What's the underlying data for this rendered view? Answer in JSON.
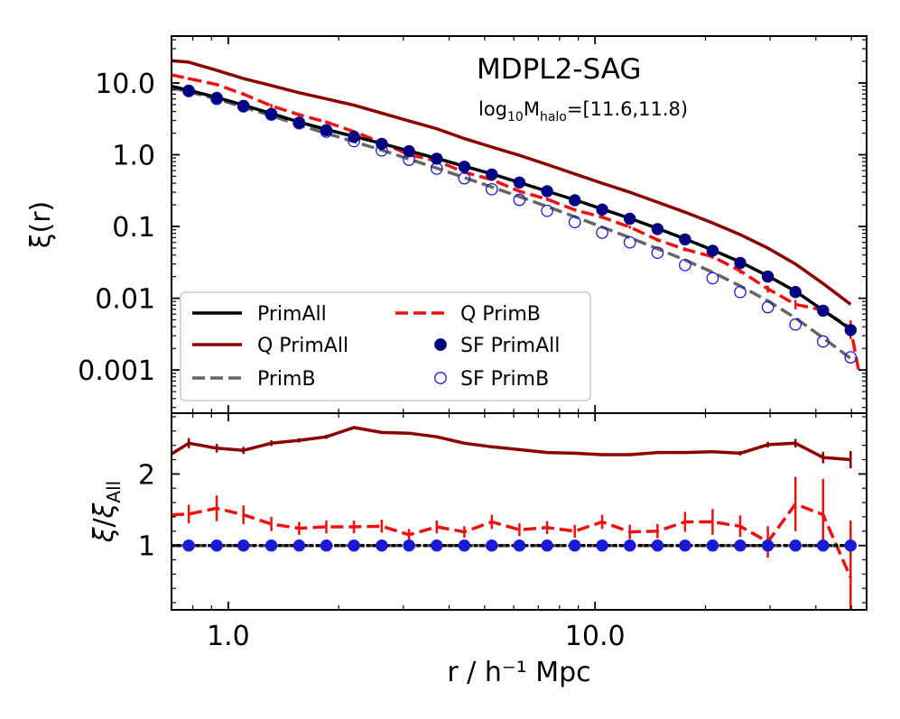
{
  "chart_data": [
    {
      "type": "line",
      "panel": "main",
      "title": "MDPL2-SAG",
      "subtitle": {
        "prefix": "log",
        "sub1": "10",
        "mid": "M",
        "sub2": "halo",
        "suffix": "=[11.6,11.8)"
      },
      "xlabel": "r / h⁻¹ Mpc",
      "ylabel": "ξ(r)",
      "xscale": "log",
      "yscale": "log",
      "xlim": [
        0.7,
        55
      ],
      "ylim": [
        0.00025,
        45
      ],
      "xticks": [
        {
          "v": 1.0,
          "label": "1.0"
        },
        {
          "v": 10.0,
          "label": "10.0"
        }
      ],
      "yticks": [
        {
          "v": 10,
          "label": "10.0"
        },
        {
          "v": 1,
          "label": "1.0"
        },
        {
          "v": 0.1,
          "label": "0.1"
        },
        {
          "v": 0.01,
          "label": "0.01"
        },
        {
          "v": 0.001,
          "label": "0.001"
        }
      ],
      "x": [
        0.7,
        0.78,
        0.93,
        1.1,
        1.31,
        1.56,
        1.85,
        2.2,
        2.62,
        3.11,
        3.7,
        4.4,
        5.23,
        6.22,
        7.4,
        8.8,
        10.46,
        12.44,
        14.8,
        17.59,
        20.92,
        24.88,
        29.59,
        35.19,
        41.85,
        49.76
      ],
      "series": [
        {
          "name": "PrimAll",
          "style": "solid",
          "color": "#000000",
          "values": [
            9.0,
            7.9,
            6.3,
            4.9,
            3.75,
            2.85,
            2.25,
            1.8,
            1.43,
            1.13,
            0.89,
            0.69,
            0.54,
            0.41,
            0.31,
            0.235,
            0.175,
            0.13,
            0.094,
            0.067,
            0.047,
            0.032,
            0.0205,
            0.0125,
            0.0068,
            0.0037
          ]
        },
        {
          "name": "Q PrimAll",
          "style": "solid",
          "color": "#8b0000",
          "values": [
            20.5,
            19.5,
            15.0,
            11.5,
            9.2,
            7.3,
            6.0,
            4.9,
            3.8,
            2.95,
            2.3,
            1.68,
            1.28,
            0.98,
            0.73,
            0.54,
            0.4,
            0.3,
            0.218,
            0.158,
            0.112,
            0.077,
            0.05,
            0.03,
            0.016,
            0.0082
          ]
        },
        {
          "name": "PrimB",
          "style": "dashed",
          "color": "#666666",
          "values": [
            8.6,
            7.5,
            6.0,
            4.6,
            3.5,
            2.6,
            1.98,
            1.52,
            1.16,
            0.87,
            0.65,
            0.48,
            0.355,
            0.26,
            0.19,
            0.137,
            0.098,
            0.07,
            0.049,
            0.034,
            0.023,
            0.0148,
            0.0092,
            0.0053,
            0.0028,
            0.00145
          ]
        },
        {
          "name": "Q PrimB",
          "style": "dashed",
          "color": "#ee1111",
          "values": [
            13.0,
            11.5,
            9.5,
            7.0,
            4.8,
            3.6,
            2.85,
            2.1,
            1.48,
            1.0,
            0.82,
            0.57,
            0.45,
            0.31,
            0.24,
            0.17,
            0.135,
            0.098,
            0.065,
            0.048,
            0.038,
            0.024,
            0.0135,
            0.0082,
            0.0068,
            0.0038,
            0.0009
          ],
          "x": [
            0.7,
            0.78,
            0.93,
            1.1,
            1.31,
            1.56,
            1.85,
            2.2,
            2.62,
            3.11,
            3.7,
            4.4,
            5.23,
            6.22,
            7.4,
            8.8,
            10.46,
            12.44,
            14.8,
            17.59,
            20.92,
            24.88,
            29.59,
            35.19,
            41.85,
            49.76,
            52.5
          ],
          "errors": [
            0,
            0.5,
            0.5,
            0.4,
            0.3,
            0.2,
            0.15,
            0.1,
            0.08,
            0.05,
            0.04,
            0.03,
            0.02,
            0.015,
            0.012,
            0.009,
            0.007,
            0.005,
            0.004,
            0.003,
            0.0025,
            0.002,
            0.0015,
            0.0012,
            0.0012,
            0.0011,
            0
          ]
        },
        {
          "name": "SF PrimAll",
          "style": "filled-circle",
          "color": "#000080",
          "values": [
            null,
            7.8,
            6.2,
            4.8,
            3.7,
            2.8,
            2.2,
            1.78,
            1.42,
            1.12,
            0.88,
            0.68,
            0.53,
            0.41,
            0.31,
            0.232,
            0.172,
            0.128,
            0.092,
            0.066,
            0.046,
            0.031,
            0.02,
            0.0122,
            0.0067,
            0.0036
          ]
        },
        {
          "name": "SF PrimB",
          "style": "open-circle",
          "color": "#1a1ad6",
          "values": [
            null,
            7.7,
            6.0,
            4.7,
            3.6,
            2.75,
            2.1,
            1.55,
            1.15,
            0.85,
            0.64,
            0.47,
            0.33,
            0.235,
            0.165,
            0.115,
            0.082,
            0.06,
            0.043,
            0.029,
            0.019,
            0.0122,
            0.0075,
            0.0043,
            0.0025,
            0.0015
          ]
        }
      ],
      "legend": {
        "placement": "lower-left",
        "columns": 2,
        "order": [
          "PrimAll",
          "Q PrimB",
          "Q PrimAll",
          "SF PrimAll",
          "PrimB",
          "SF PrimB"
        ]
      }
    },
    {
      "type": "line",
      "panel": "ratio",
      "ylabel": {
        "xi": "ξ",
        "slash": "/",
        "xi2": "ξ",
        "sub": "All"
      },
      "xscale": "log",
      "yscale": "linear",
      "xlim": [
        0.7,
        55
      ],
      "ylim": [
        0.1,
        2.85
      ],
      "yticks": [
        {
          "v": 1,
          "label": "1"
        },
        {
          "v": 2,
          "label": "2"
        }
      ],
      "x": [
        0.7,
        0.78,
        0.93,
        1.1,
        1.31,
        1.56,
        1.85,
        2.2,
        2.62,
        3.11,
        3.7,
        4.4,
        5.23,
        6.22,
        7.4,
        8.8,
        10.46,
        12.44,
        14.8,
        17.59,
        20.92,
        24.88,
        29.59,
        35.19,
        41.85,
        49.76
      ],
      "series": [
        {
          "name": "Q PrimAll ratio",
          "style": "solid",
          "color": "#8b0000",
          "values": [
            2.28,
            2.43,
            2.36,
            2.33,
            2.43,
            2.47,
            2.52,
            2.65,
            2.58,
            2.57,
            2.52,
            2.43,
            2.38,
            2.34,
            2.3,
            2.29,
            2.27,
            2.27,
            2.3,
            2.3,
            2.31,
            2.29,
            2.41,
            2.43,
            2.23,
            2.2
          ],
          "errors": [
            0,
            0.07,
            0.06,
            0.05,
            0.04,
            0.03,
            0.03,
            0.02,
            0.02,
            0.02,
            0.02,
            0.02,
            0.02,
            0.02,
            0.02,
            0.02,
            0.02,
            0.02,
            0.02,
            0.02,
            0.02,
            0.03,
            0.04,
            0.06,
            0.08,
            0.12
          ]
        },
        {
          "name": "Q PrimB ratio",
          "style": "dashed",
          "color": "#ee1111",
          "values": [
            1.43,
            1.44,
            1.52,
            1.43,
            1.3,
            1.24,
            1.26,
            1.26,
            1.27,
            1.15,
            1.26,
            1.19,
            1.33,
            1.22,
            1.25,
            1.2,
            1.33,
            1.19,
            1.2,
            1.33,
            1.33,
            1.27,
            1.05,
            1.58,
            1.43,
            0.55
          ],
          "errors": [
            0,
            0.13,
            0.18,
            0.13,
            0.1,
            0.09,
            0.09,
            0.09,
            0.09,
            0.08,
            0.09,
            0.08,
            0.1,
            0.09,
            0.09,
            0.09,
            0.1,
            0.1,
            0.1,
            0.14,
            0.18,
            0.15,
            0.22,
            0.38,
            0.5,
            0.8
          ]
        },
        {
          "name": "PrimB ratio",
          "style": "dashed",
          "color": "#666666",
          "values": [
            1,
            1,
            1,
            1,
            1,
            1,
            1,
            1,
            1,
            1,
            1,
            1,
            1,
            1,
            1,
            1,
            1,
            1,
            1,
            1,
            1,
            1,
            1,
            1,
            1,
            1
          ]
        },
        {
          "name": "PrimAll ratio",
          "style": "dotted",
          "color": "#000000",
          "values": [
            1,
            1,
            1,
            1,
            1,
            1,
            1,
            1,
            1,
            1,
            1,
            1,
            1,
            1,
            1,
            1,
            1,
            1,
            1,
            1,
            1,
            1,
            1,
            1,
            1,
            1
          ]
        },
        {
          "name": "SF PrimAll ratio",
          "style": "filled-circle",
          "color": "#1a1ad6",
          "values": [
            null,
            1,
            1,
            1,
            1,
            1,
            1,
            1,
            1,
            1,
            1,
            1,
            1,
            1,
            1,
            1,
            1,
            1,
            1,
            1,
            1,
            1,
            1,
            1,
            1,
            1
          ]
        }
      ]
    }
  ]
}
